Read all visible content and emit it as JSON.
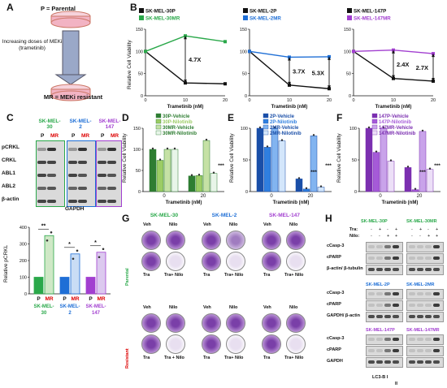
{
  "panels": {
    "A": {
      "letter": "A",
      "top_label": "P = Parental",
      "arrow_label": "Increasing doses of MEKi (trametinib)",
      "bottom_label": "MR = MEKi resistant"
    },
    "B": {
      "letter": "B",
      "ylabel": "Relative Cell Viability",
      "xlabel": "Trametinib (nM)"
    },
    "C": {
      "letter": "C",
      "lines": [
        "SK-MEL-30",
        "SK-MEL-2",
        "SK-MEL-147"
      ],
      "p": "P",
      "mr": "MR",
      "rows": [
        "pCRKL",
        "CRKL",
        "ABL1",
        "ABL2",
        "β-actin"
      ],
      "footer": "GAPDH",
      "bar_ylabel": "Relative pCRKL"
    },
    "D": {
      "letter": "D",
      "ylabel": "Relative Cell Viability",
      "xlabel": "Trametinib (nM)"
    },
    "E": {
      "letter": "E",
      "ylabel": "Relative Cell Viability",
      "xlabel": "Trametinib (nM)"
    },
    "F": {
      "letter": "F",
      "ylabel": "Relative Cell Viability",
      "xlabel": "Trametinib (nM)"
    },
    "G": {
      "letter": "G",
      "lines": [
        "SK-MEL-30",
        "SK-MEL-2",
        "SK-MEL-147"
      ],
      "veh": "Veh",
      "nilo": "Nilo",
      "tra": "Tra",
      "tranilo": "Tra+ Nilo",
      "tranilo2": "Tra + Nilo",
      "parental": "Parental",
      "resistant": "Resistant"
    },
    "H": {
      "letter": "H",
      "tra": "Tra:",
      "nilo": "Nilo:",
      "plus": "+",
      "minus": "-",
      "lines": [
        "SK-MEL-30P",
        "SK-MEL-30MR",
        "SK-MEL-2P",
        "SK-MEL-2MR",
        "SK-MEL-147P",
        "SK-MEL-147MR"
      ],
      "rows1": [
        "cCasp-3",
        "cPARP",
        "β-actin/ β-tubulin"
      ],
      "rows2": [
        "cCasp-3",
        "cPARP",
        "GAPDH/ β-actin"
      ],
      "rows3": [
        "cCasp-3",
        "cPARP",
        "GAPDH"
      ],
      "lc3": "LC3-B I",
      "lc3b": "II"
    }
  },
  "colors": {
    "mel30": "#2aa84a",
    "mel2": "#1f6fd6",
    "mel147": "#a23fd0",
    "mel30_light": "#cfe8c6",
    "mel2_light": "#c9ddf5",
    "mel147_light": "#dcc9ef"
  },
  "chart_data": [
    {
      "type": "line",
      "panel": "B1",
      "x": [
        0,
        10,
        20
      ],
      "xlim": [
        0,
        20
      ],
      "ylim": [
        0,
        150
      ],
      "yticks": [
        0,
        50,
        100,
        150
      ],
      "series": [
        {
          "name": "SK-MEL-30P",
          "values": [
            100,
            29,
            27
          ]
        },
        {
          "name": "SK-MEL-30MR",
          "values": [
            100,
            135,
            122
          ]
        }
      ],
      "annotations": [
        "4.7X"
      ]
    },
    {
      "type": "line",
      "panel": "B2",
      "x": [
        0,
        10,
        20
      ],
      "xlim": [
        0,
        20
      ],
      "ylim": [
        0,
        150
      ],
      "yticks": [
        0,
        50,
        100,
        150
      ],
      "series": [
        {
          "name": "SK-MEL-2P",
          "values": [
            100,
            24,
            16
          ]
        },
        {
          "name": "SK-MEL-2MR",
          "values": [
            100,
            87,
            88
          ]
        }
      ],
      "annotations": [
        "3.7X",
        "5.3X"
      ]
    },
    {
      "type": "line",
      "panel": "B3",
      "x": [
        0,
        10,
        20
      ],
      "xlim": [
        0,
        20
      ],
      "ylim": [
        0,
        150
      ],
      "yticks": [
        0,
        50,
        100,
        150
      ],
      "series": [
        {
          "name": "SK-MEL-147P",
          "values": [
            100,
            39,
            33
          ]
        },
        {
          "name": "SK-MEL-147MR",
          "values": [
            100,
            103,
            95
          ]
        }
      ],
      "annotations": [
        "2.4X",
        "2.7X"
      ]
    },
    {
      "type": "bar",
      "panel": "C",
      "categories": [
        "P",
        "MR",
        "P",
        "MR",
        "P",
        "MR"
      ],
      "values": [
        100,
        350,
        100,
        240,
        100,
        250
      ],
      "ylim": [
        0,
        400
      ],
      "yticks": [
        0,
        100,
        200,
        300,
        400
      ],
      "sig": [
        "**",
        "*",
        "*"
      ],
      "groups": [
        "SK-MEL-30",
        "SK-MEL-2",
        "SK-MEL-147"
      ]
    },
    {
      "type": "bar",
      "panel": "D",
      "categories": [
        "0",
        "20"
      ],
      "ylim": [
        0,
        150
      ],
      "yticks": [
        0,
        50,
        100,
        150
      ],
      "series": [
        {
          "name": "30P-Vehicle",
          "values": [
            100,
            37
          ]
        },
        {
          "name": "30P-Nilotinib",
          "values": [
            74,
            38
          ]
        },
        {
          "name": "30MR-Vehicle",
          "values": [
            100,
            121
          ]
        },
        {
          "name": "30MR-Nilotinib",
          "values": [
            100,
            43
          ]
        }
      ],
      "sig": [
        "***"
      ]
    },
    {
      "type": "bar",
      "panel": "E",
      "categories": [
        "0",
        "20"
      ],
      "ylim": [
        0,
        100
      ],
      "yticks": [
        0,
        50,
        100
      ],
      "series": [
        {
          "name": "2P-Vehicle",
          "values": [
            100,
            20
          ]
        },
        {
          "name": "2P-Nilotinib",
          "values": [
            70,
            4
          ]
        },
        {
          "name": "2MR-Vehicle",
          "values": [
            100,
            88
          ]
        },
        {
          "name": "2MR-Nilotinib",
          "values": [
            80,
            7
          ]
        }
      ],
      "sig": [
        "***",
        "***"
      ]
    },
    {
      "type": "bar",
      "panel": "F",
      "categories": [
        "0",
        "20"
      ],
      "ylim": [
        0,
        100
      ],
      "yticks": [
        0,
        50,
        100
      ],
      "series": [
        {
          "name": "147P-Vehicle",
          "values": [
            100,
            38
          ]
        },
        {
          "name": "147P-Nilotinib",
          "values": [
            62,
            3
          ]
        },
        {
          "name": "147MR-Vehicle",
          "values": [
            100,
            95
          ]
        },
        {
          "name": "147MR-Nilotinib",
          "values": [
            48,
            35
          ]
        }
      ],
      "sig": [
        "***",
        "***"
      ]
    }
  ]
}
